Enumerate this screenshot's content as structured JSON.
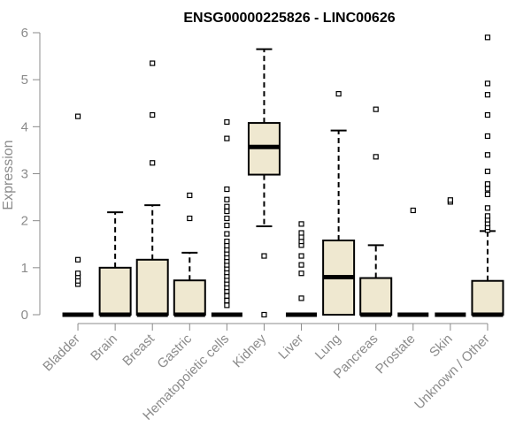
{
  "chart_data": {
    "type": "box",
    "title": "ENSG00000225826 - LINC00626",
    "xlabel": "",
    "ylabel": "Expression",
    "ylim": [
      0,
      6
    ],
    "yticks": [
      0,
      1,
      2,
      3,
      4,
      5,
      6
    ],
    "grid": false,
    "colors": {
      "box_fill": "#efe8d0",
      "box_stroke": "#000000",
      "median": "#000000",
      "whisker": "#000000",
      "outlier": "#000000",
      "axis": "#8b8b8b",
      "title": "#000000"
    },
    "categories": [
      "Bladder",
      "Brain",
      "Breast",
      "Gastric",
      "Hematopoietic cells",
      "Kidney",
      "Liver",
      "Lung",
      "Pancreas",
      "Prostate",
      "Skin",
      "Unknown / Other"
    ],
    "boxes": [
      {
        "category": "Bladder",
        "q1": 0,
        "median": 0,
        "q3": 0,
        "whisker_low": 0,
        "whisker_high": 0,
        "outliers": [
          0.65,
          0.72,
          0.81,
          0.88,
          1.17,
          4.22
        ]
      },
      {
        "category": "Brain",
        "q1": 0,
        "median": 0,
        "q3": 1.0,
        "whisker_low": 0,
        "whisker_high": 2.18,
        "outliers": []
      },
      {
        "category": "Breast",
        "q1": 0,
        "median": 0,
        "q3": 1.17,
        "whisker_low": 0,
        "whisker_high": 2.33,
        "outliers": [
          3.23,
          4.25,
          5.35
        ]
      },
      {
        "category": "Gastric",
        "q1": 0,
        "median": 0,
        "q3": 0.73,
        "whisker_low": 0,
        "whisker_high": 1.32,
        "outliers": [
          2.05,
          2.54
        ]
      },
      {
        "category": "Hematopoietic cells",
        "q1": 0,
        "median": 0,
        "q3": 0,
        "whisker_low": 0,
        "whisker_high": 0,
        "outliers": [
          0.2,
          0.3,
          0.4,
          0.5,
          0.58,
          0.66,
          0.74,
          0.82,
          0.9,
          0.98,
          1.06,
          1.14,
          1.22,
          1.3,
          1.38,
          1.47,
          1.56,
          1.72,
          1.9,
          2.05,
          2.2,
          2.3,
          2.45,
          2.67,
          3.75,
          4.1
        ]
      },
      {
        "category": "Kidney",
        "q1": 2.98,
        "median": 3.57,
        "q3": 4.08,
        "whisker_low": 1.88,
        "whisker_high": 5.65,
        "outliers": [
          0.0,
          1.25
        ]
      },
      {
        "category": "Liver",
        "q1": 0,
        "median": 0,
        "q3": 0,
        "whisker_low": 0,
        "whisker_high": 0,
        "outliers": [
          0.35,
          0.88,
          1.06,
          1.25,
          1.48,
          1.56,
          1.65,
          1.74,
          1.93
        ]
      },
      {
        "category": "Lung",
        "q1": 0,
        "median": 0.8,
        "q3": 1.58,
        "whisker_low": 0,
        "whisker_high": 3.92,
        "outliers": [
          4.7
        ]
      },
      {
        "category": "Pancreas",
        "q1": 0,
        "median": 0,
        "q3": 0.78,
        "whisker_low": 0,
        "whisker_high": 1.48,
        "outliers": [
          3.36,
          4.37
        ]
      },
      {
        "category": "Prostate",
        "q1": 0,
        "median": 0,
        "q3": 0,
        "whisker_low": 0,
        "whisker_high": 0,
        "outliers": [
          2.22
        ]
      },
      {
        "category": "Skin",
        "q1": 0,
        "median": 0,
        "q3": 0,
        "whisker_low": 0,
        "whisker_high": 0,
        "outliers": [
          2.4,
          2.44
        ]
      },
      {
        "category": "Unknown / Other",
        "q1": 0,
        "median": 0,
        "q3": 0.72,
        "whisker_low": 0,
        "whisker_high": 1.78,
        "outliers": [
          1.8,
          1.86,
          1.94,
          2.02,
          2.1,
          2.27,
          2.56,
          2.68,
          2.78,
          3.05,
          3.4,
          3.8,
          4.25,
          4.68,
          4.92,
          5.9
        ]
      }
    ]
  }
}
